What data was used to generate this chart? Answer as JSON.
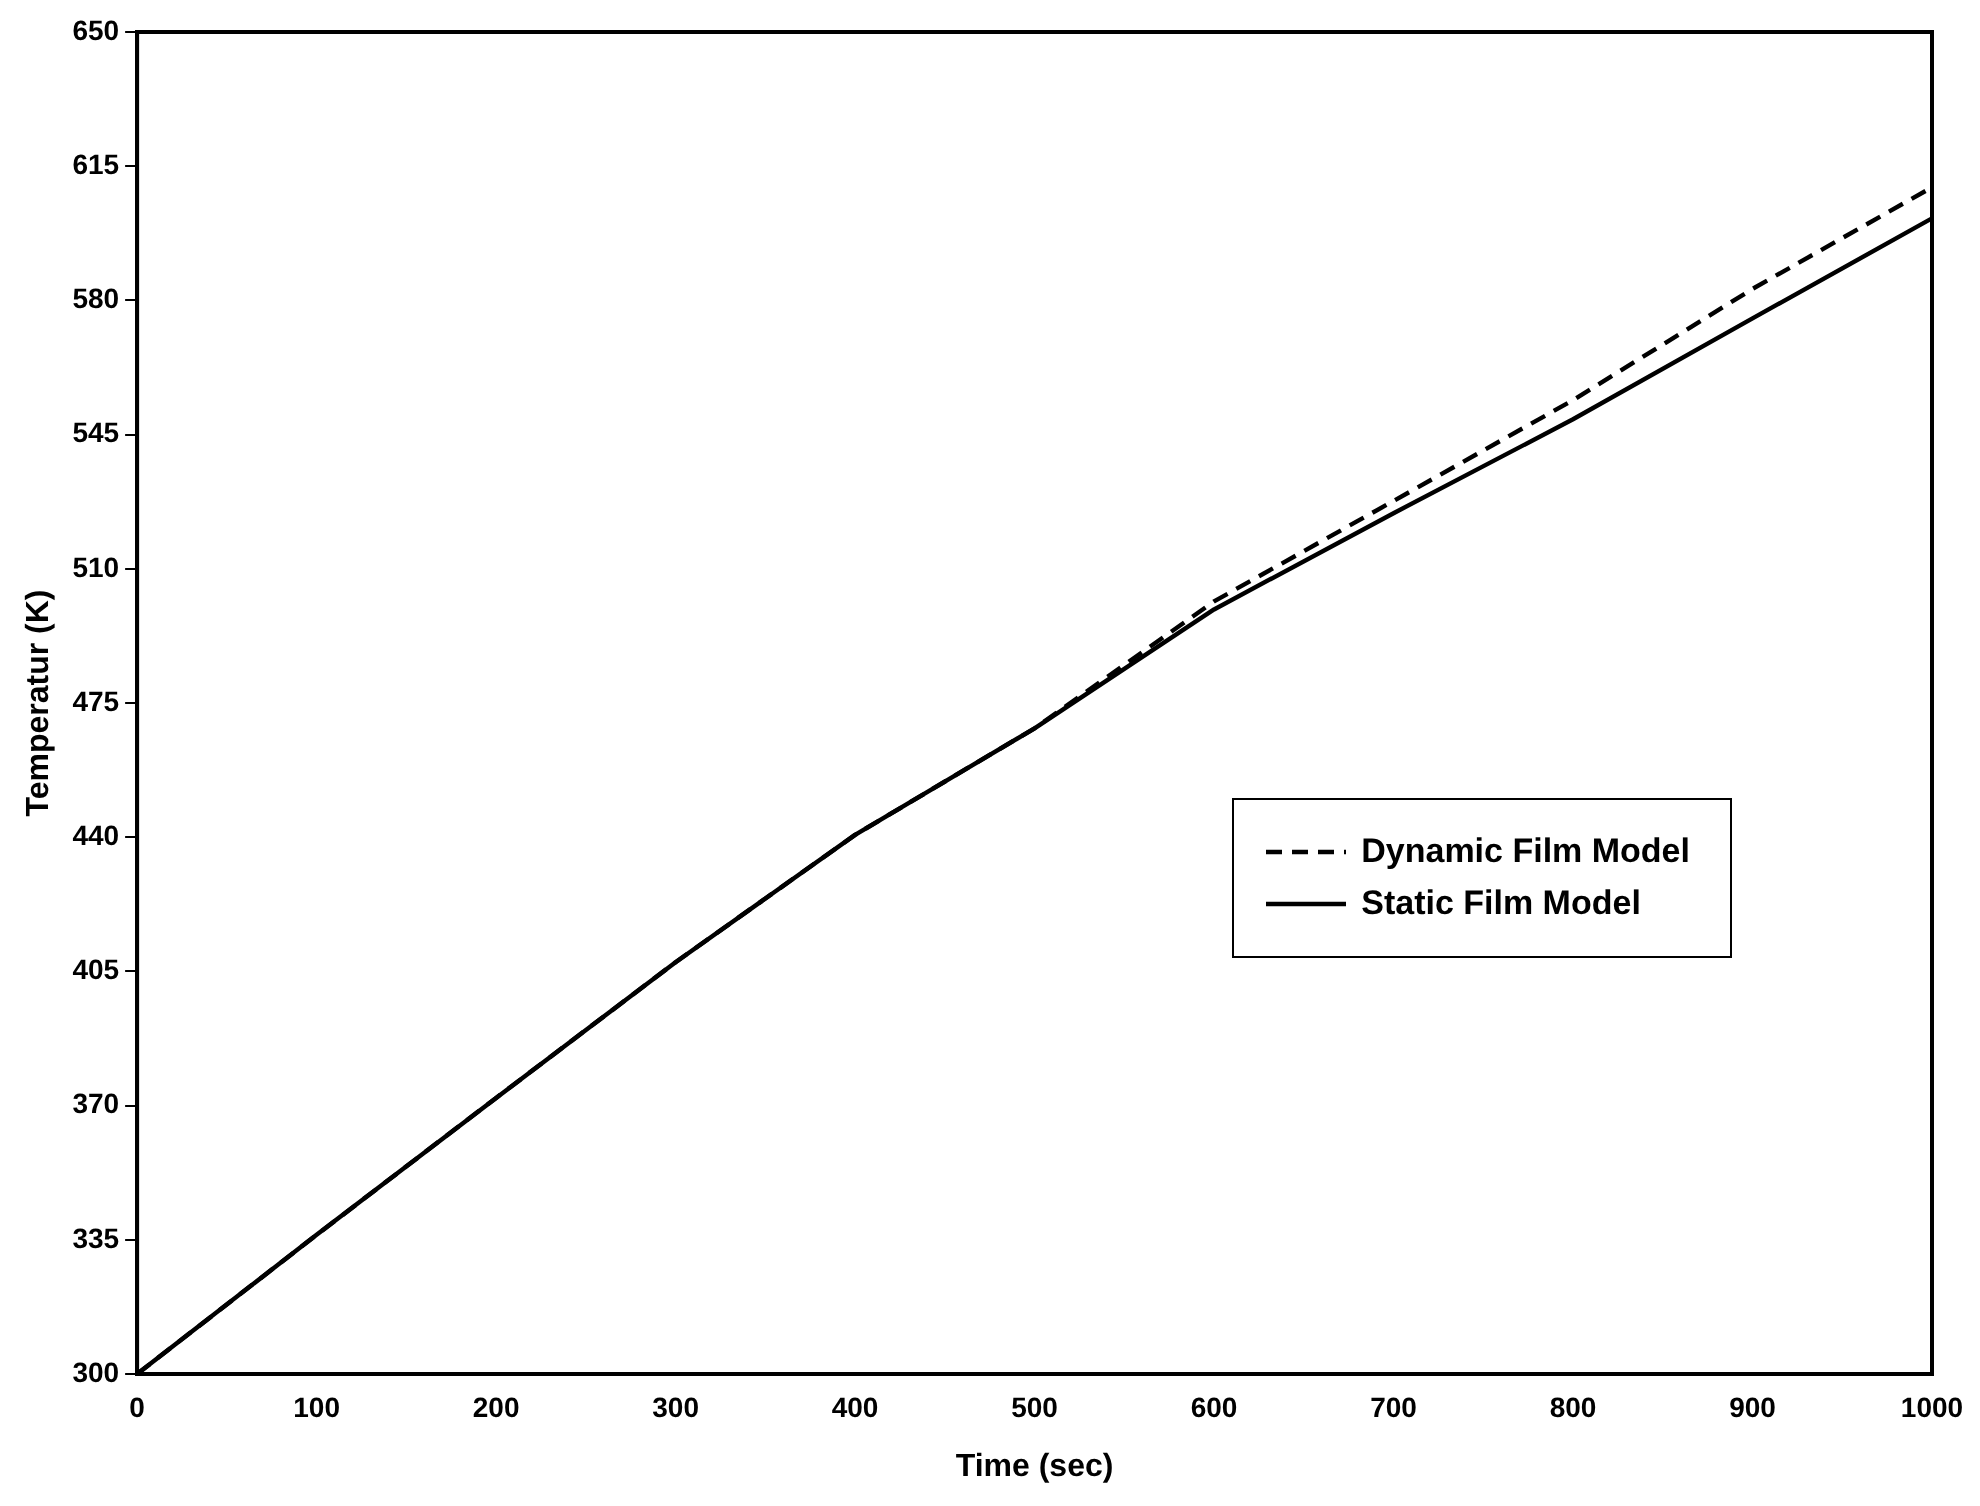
{
  "chart_data": {
    "type": "line",
    "xlabel": "Time (sec)",
    "ylabel": "Temperatur (K)",
    "x": [
      0,
      100,
      200,
      300,
      400,
      500,
      600,
      700,
      800,
      900,
      1000
    ],
    "series": [
      {
        "name": "Dynamic Film Model",
        "color": "#000000",
        "line_style": "dashed",
        "values": [
          300,
          336.3,
          372,
          407.4,
          440.6,
          468.4,
          501.5,
          527.7,
          554,
          583,
          609.5
        ]
      },
      {
        "name": "Static Film Model",
        "color": "#000000",
        "line_style": "solid",
        "values": [
          300,
          336.3,
          372,
          407.4,
          440.6,
          468.4,
          499.4,
          524.5,
          549,
          575.3,
          601.4
        ]
      }
    ],
    "xlim": [
      0,
      1000
    ],
    "xticks": [
      0,
      100,
      200,
      300,
      400,
      500,
      600,
      700,
      800,
      900,
      1000
    ],
    "ylim": [
      300,
      650
    ],
    "yticks": [
      300,
      335,
      370,
      405,
      440,
      475,
      510,
      545,
      580,
      615,
      650
    ],
    "grid": false,
    "legend": "right",
    "marker": "none"
  }
}
